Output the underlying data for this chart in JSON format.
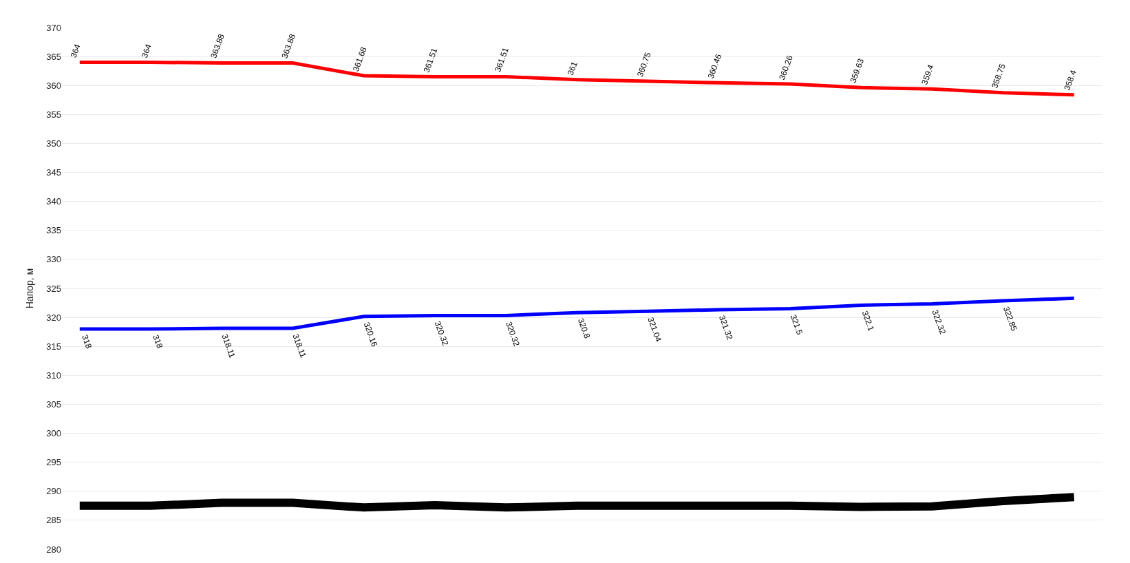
{
  "chart_data": {
    "type": "line",
    "ylabel": "Напор, м",
    "categories": [
      null,
      null,
      null,
      null,
      null,
      null,
      null,
      null,
      null,
      null,
      null,
      null,
      null,
      null,
      null
    ],
    "ylim": [
      280,
      370
    ],
    "yticks": [
      280,
      285,
      290,
      295,
      300,
      305,
      310,
      315,
      320,
      325,
      330,
      335,
      340,
      345,
      350,
      355,
      360,
      365,
      370
    ],
    "grid": true,
    "marker": "none",
    "line_style": "solid",
    "series": [
      {
        "color": "#ff0000",
        "values": [
          364,
          364,
          363.88,
          363.88,
          361.68,
          361.51,
          361.51,
          361,
          360.75,
          360.46,
          360.26,
          359.63,
          359.4,
          358.75,
          358.4
        ],
        "value_labels": [
          "364",
          "364",
          "363.88",
          "363.88",
          "361.68",
          "361.51",
          "361.51",
          "361",
          "360.75",
          "360.46",
          "360.26",
          "359.63",
          "359.4",
          "358.75",
          "358.4"
        ]
      },
      {
        "color": "#0000ff",
        "values": [
          318,
          318,
          318.11,
          318.11,
          320.16,
          320.32,
          320.32,
          320.8,
          321.04,
          321.32,
          321.5,
          322.1,
          322.32,
          322.85,
          323.3
        ],
        "value_labels": [
          "318",
          "318",
          "318.11",
          "318.11",
          "320.16",
          "320.32",
          "320.32",
          "320.8",
          "321.04",
          "321.32",
          "321.5",
          "322.1",
          "322.32",
          "322.85",
          null
        ]
      },
      {
        "color": "#000000",
        "values": [
          287.5,
          287.5,
          288,
          288,
          287.2,
          287.6,
          287.2,
          287.5,
          287.5,
          287.5,
          287.5,
          287.3,
          287.4,
          288.3,
          289
        ]
      }
    ]
  }
}
